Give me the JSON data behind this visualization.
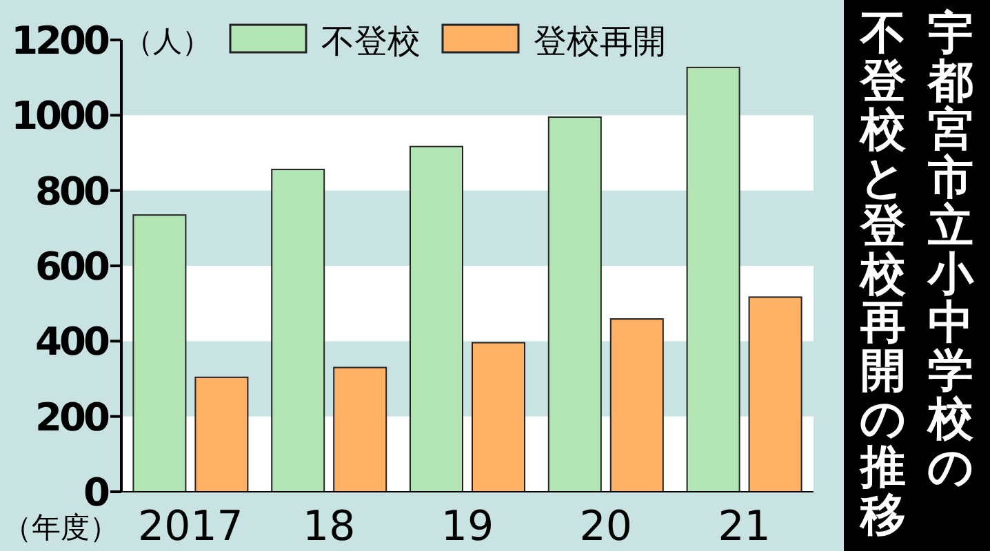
{
  "chart_data": {
    "type": "bar",
    "title": "宇都宮市立小中学校の不登校と登校再開の推移",
    "ylabel": "（人）",
    "xlabel": "（年度）",
    "categories": [
      "2017",
      "18",
      "19",
      "20",
      "21"
    ],
    "series": [
      {
        "name": "不登校",
        "color": "#b2e5b3",
        "values": [
          735,
          856,
          917,
          995,
          1127
        ]
      },
      {
        "name": "登校再開",
        "color": "#ffb265",
        "values": [
          304,
          330,
          396,
          459,
          517
        ]
      }
    ],
    "ylim": [
      0,
      1200
    ],
    "yticks": [
      0,
      200,
      400,
      600,
      800,
      1000,
      1200
    ],
    "bands": [
      {
        "axis": "y",
        "from": 0,
        "to": 200,
        "color": "#ffffff"
      },
      {
        "axis": "y",
        "from": 400,
        "to": 600,
        "color": "#ffffff"
      },
      {
        "axis": "y",
        "from": 800,
        "to": 1000,
        "color": "#ffffff"
      }
    ],
    "legend": "top",
    "grid": false
  }
}
